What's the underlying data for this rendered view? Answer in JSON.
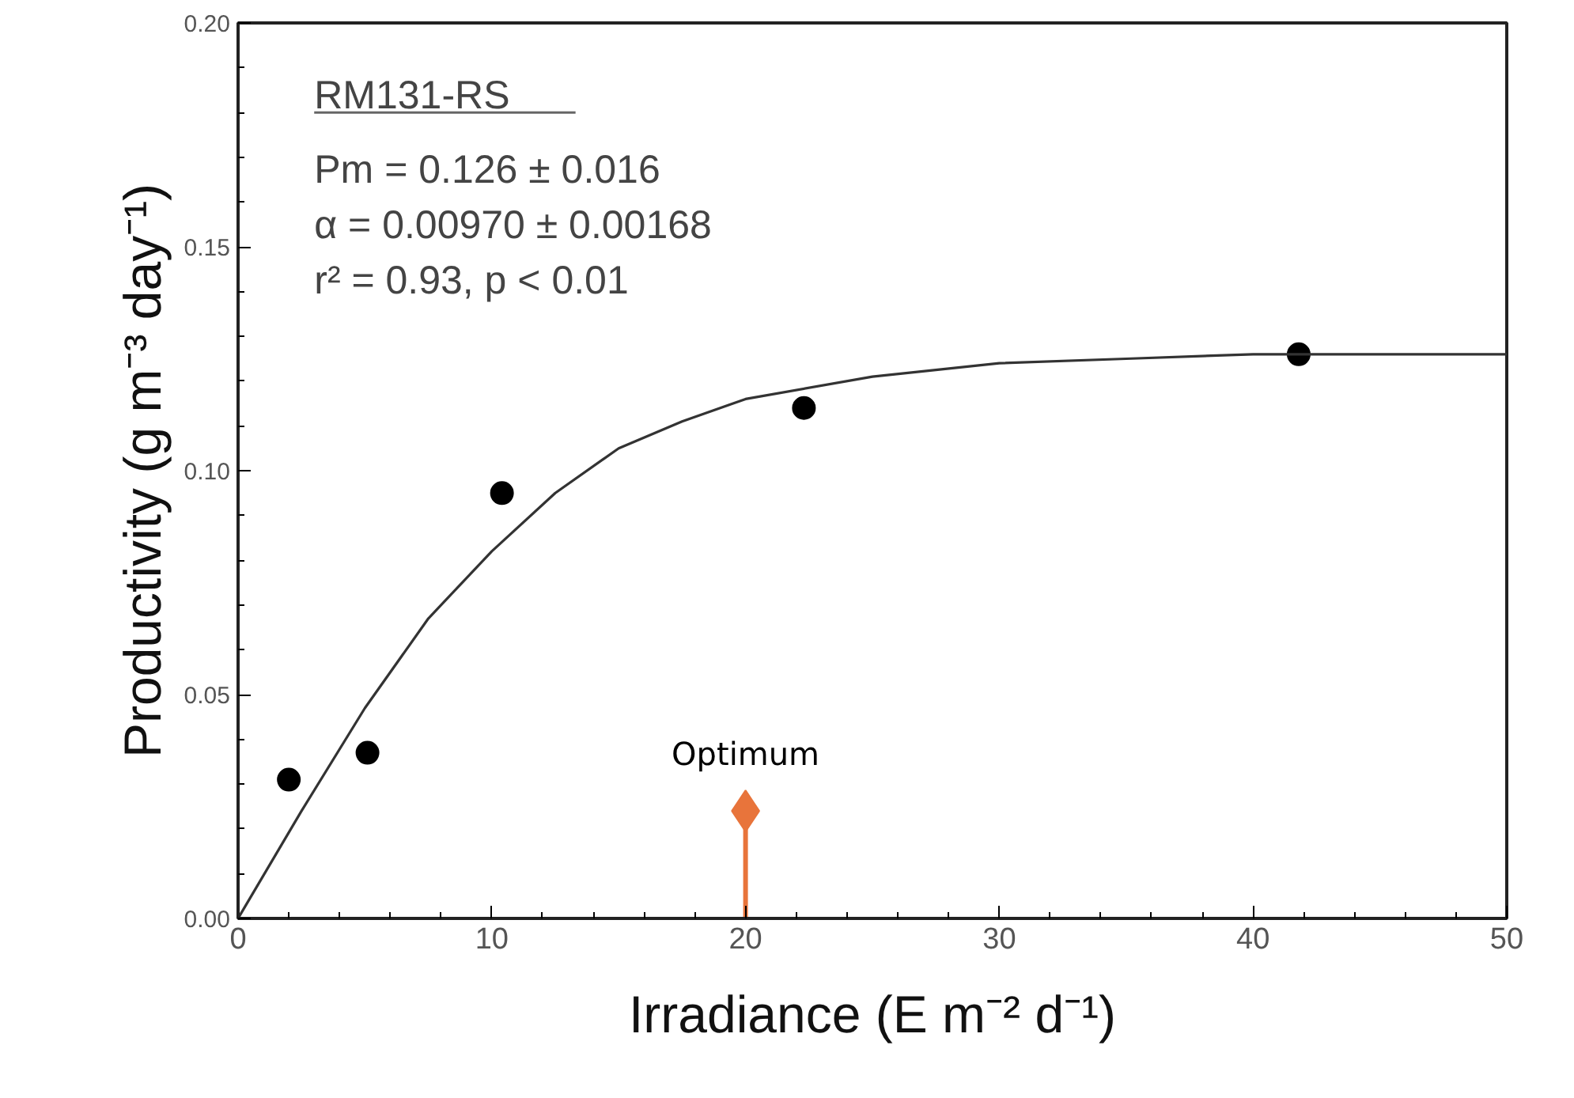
{
  "chart_data": {
    "type": "scatter",
    "xlabel": "Irradiance (E m⁻² d⁻¹)",
    "ylabel": "Productivity (g m⁻³ day⁻¹)",
    "xlim": [
      0,
      50
    ],
    "ylim": [
      0,
      0.2
    ],
    "xticks": [
      0,
      10,
      20,
      30,
      40,
      50
    ],
    "yticks": [
      {
        "value": 0,
        "label": "0.00"
      },
      {
        "value": 0.05,
        "label": "0.05"
      },
      {
        "value": 0.1,
        "label": "0.10"
      },
      {
        "value": 0.15,
        "label": "0.15"
      },
      {
        "value": 0.2,
        "label": "0.20"
      }
    ],
    "grid": false,
    "annotations": [
      "RM131-RS",
      "Pm = 0.126 ± 0.016",
      "α = 0.00970 ± 0.00168",
      "r² = 0.93, p < 0.01"
    ],
    "series": [
      {
        "marker": "circle",
        "color": "#000000",
        "x": [
          2.0,
          5.1,
          10.4,
          22.3,
          41.8
        ],
        "values": [
          0.031,
          0.037,
          0.095,
          0.114,
          0.126
        ]
      },
      {
        "type": "line",
        "line_style": "solid",
        "color": "#333333",
        "x": [
          0,
          2.5,
          5,
          7.5,
          10,
          12.5,
          15,
          17.5,
          20,
          25,
          30,
          35,
          40,
          50
        ],
        "values": [
          0,
          0.024,
          0.047,
          0.067,
          0.082,
          0.095,
          0.105,
          0.111,
          0.116,
          0.121,
          0.124,
          0.125,
          0.126,
          0.126
        ]
      },
      {
        "type": "lollipop",
        "name": "Optimum",
        "marker": "diamond",
        "color": "#e8743b",
        "x": [
          20
        ],
        "values": [
          0.024
        ]
      }
    ]
  }
}
